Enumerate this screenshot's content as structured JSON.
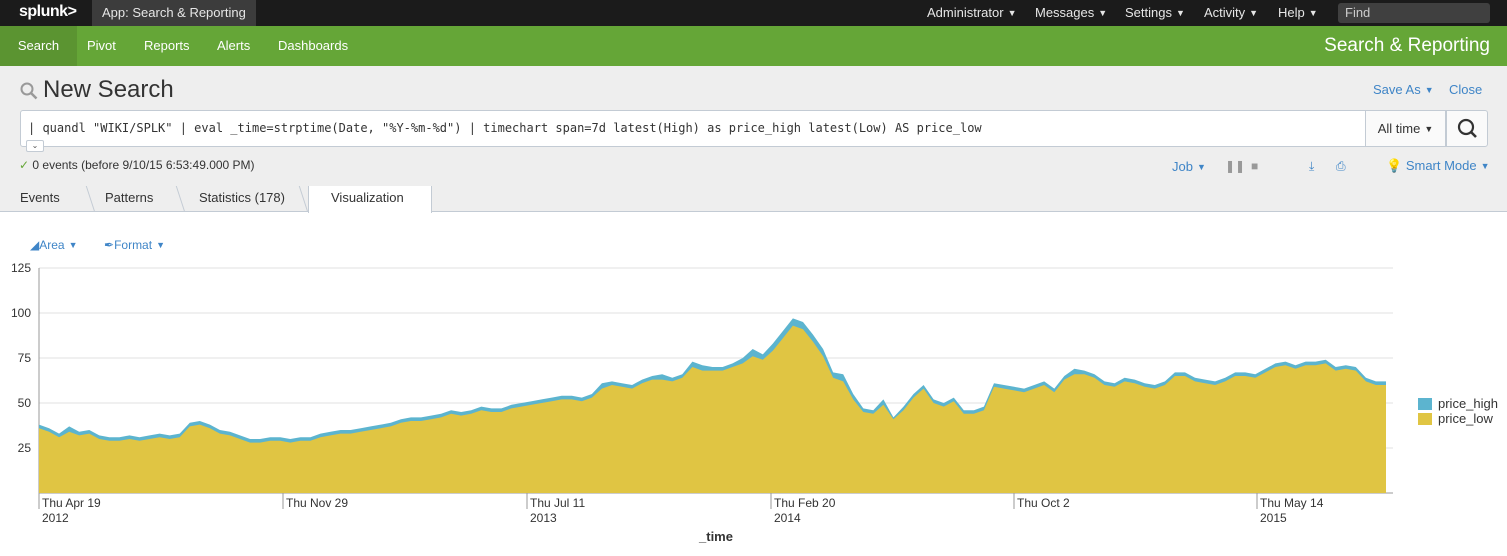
{
  "topbar": {
    "logo": "splunk>",
    "app_menu": "App: Search & Reporting",
    "menus": [
      "Administrator",
      "Messages",
      "Settings",
      "Activity",
      "Help"
    ],
    "find_placeholder": "Find"
  },
  "nav": {
    "items": [
      "Search",
      "Pivot",
      "Reports",
      "Alerts",
      "Dashboards"
    ],
    "active": "Search",
    "app_title": "Search & Reporting"
  },
  "search": {
    "title": "New Search",
    "save_as": "Save As",
    "close": "Close",
    "query": "| quandl \"WIKI/SPLK\" | eval _time=strptime(Date, \"%Y-%m-%d\") | timechart span=7d latest(High) as price_high latest(Low) AS price_low",
    "time_range": "All time",
    "status": "0 events (before 9/10/15 6:53:49.000 PM)",
    "job_label": "Job",
    "mode": "Smart Mode"
  },
  "tabs": [
    {
      "label": "Events"
    },
    {
      "label": "Patterns"
    },
    {
      "label": "Statistics (178)"
    },
    {
      "label": "Visualization"
    }
  ],
  "active_tab": "Visualization",
  "viz_controls": {
    "type_label": "Area",
    "format_label": "Format"
  },
  "colors": {
    "price_high": "#5cb4cf",
    "price_low": "#e0c543",
    "green": "#65a637",
    "link": "#3f85c7"
  },
  "chart_data": {
    "type": "area",
    "xlabel": "_time",
    "ylabel": "",
    "ylim": [
      0,
      125
    ],
    "yticks": [
      25,
      50,
      75,
      100,
      125
    ],
    "xticks": [
      {
        "line1": "Thu Apr 19",
        "line2": "2012"
      },
      {
        "line1": "Thu Nov 29",
        "line2": ""
      },
      {
        "line1": "Thu Jul 11",
        "line2": "2013"
      },
      {
        "line1": "Thu Feb 20",
        "line2": "2014"
      },
      {
        "line1": "Thu Oct 2",
        "line2": ""
      },
      {
        "line1": "Thu May 14",
        "line2": "2015"
      }
    ],
    "x_start": "2012-04-19",
    "x_end": "2015-09-10",
    "series": [
      {
        "name": "price_high",
        "values": [
          38,
          36,
          33,
          37,
          34,
          35,
          32,
          31,
          31,
          32,
          31,
          32,
          33,
          32,
          33,
          39,
          40,
          38,
          35,
          34,
          32,
          30,
          30,
          31,
          31,
          30,
          31,
          31,
          33,
          34,
          35,
          35,
          36,
          37,
          38,
          39,
          41,
          42,
          42,
          43,
          44,
          46,
          45,
          46,
          48,
          47,
          47,
          49,
          50,
          51,
          52,
          53,
          54,
          54,
          53,
          55,
          61,
          62,
          61,
          60,
          63,
          65,
          66,
          64,
          66,
          73,
          71,
          70,
          70,
          72,
          75,
          80,
          77,
          83,
          90,
          97,
          95,
          88,
          80,
          67,
          66,
          55,
          47,
          46,
          52,
          42,
          48,
          55,
          60,
          52,
          50,
          53,
          46,
          46,
          48,
          61,
          60,
          59,
          58,
          60,
          62,
          58,
          65,
          69,
          68,
          66,
          62,
          61,
          64,
          63,
          61,
          60,
          62,
          67,
          67,
          64,
          63,
          62,
          64,
          67,
          67,
          66,
          69,
          72,
          73,
          71,
          73,
          73,
          74,
          70,
          71,
          70,
          64,
          62,
          62
        ]
      },
      {
        "name": "price_low",
        "values": [
          36,
          34,
          31,
          34,
          32,
          33,
          30,
          29,
          29,
          30,
          29,
          30,
          31,
          30,
          31,
          37,
          38,
          36,
          33,
          32,
          30,
          28,
          28,
          29,
          29,
          28,
          29,
          29,
          31,
          32,
          33,
          33,
          34,
          35,
          36,
          37,
          39,
          40,
          40,
          41,
          42,
          44,
          43,
          44,
          46,
          45,
          45,
          47,
          48,
          49,
          50,
          51,
          52,
          52,
          51,
          53,
          58,
          60,
          59,
          58,
          61,
          63,
          63,
          62,
          64,
          70,
          68,
          68,
          68,
          70,
          72,
          76,
          74,
          79,
          86,
          93,
          91,
          84,
          76,
          64,
          62,
          52,
          45,
          44,
          49,
          41,
          46,
          53,
          58,
          50,
          48,
          51,
          44,
          44,
          46,
          59,
          58,
          57,
          56,
          58,
          60,
          56,
          63,
          66,
          66,
          64,
          60,
          59,
          62,
          61,
          59,
          58,
          60,
          65,
          65,
          62,
          61,
          60,
          62,
          65,
          65,
          64,
          67,
          70,
          71,
          69,
          71,
          71,
          72,
          68,
          69,
          68,
          62,
          60,
          60
        ]
      }
    ],
    "legend_position": "right"
  }
}
